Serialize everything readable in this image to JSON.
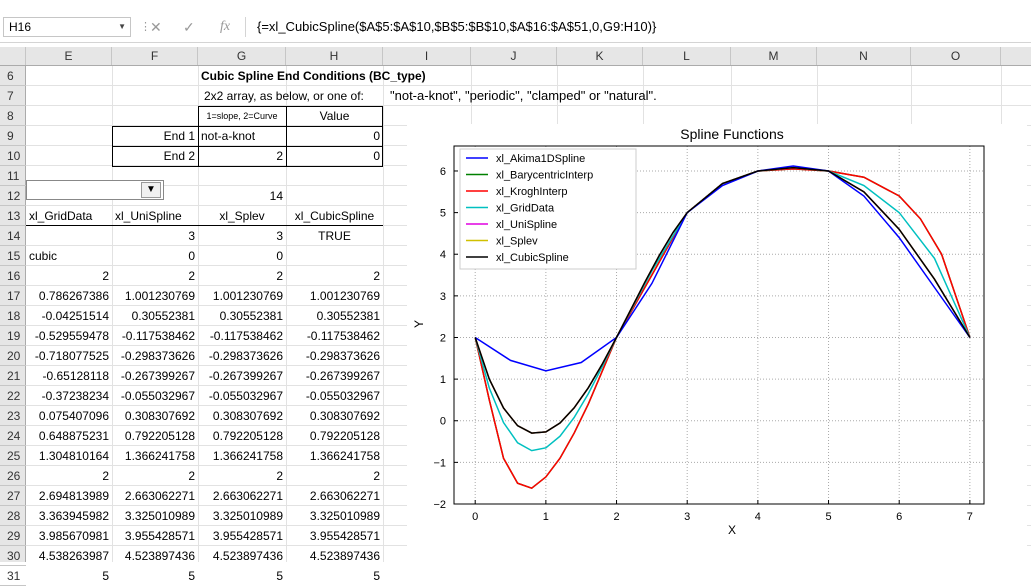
{
  "name_box": {
    "value": "H16"
  },
  "formula_bar": {
    "value": "{=xl_CubicSpline($A$5:$A$10,$B$5:$B$10,$A$16:$A$51,0,G9:H10)}",
    "fx": "fx"
  },
  "columns": [
    "E",
    "F",
    "G",
    "H",
    "I",
    "J",
    "K",
    "L",
    "M",
    "N",
    "O"
  ],
  "rows": [
    "6",
    "7",
    "8",
    "9",
    "10",
    "11",
    "12",
    "13",
    "14",
    "15",
    "16",
    "17",
    "18",
    "19",
    "20",
    "21",
    "22",
    "23",
    "24",
    "25",
    "26",
    "27",
    "28",
    "29",
    "30",
    "31"
  ],
  "sheet": {
    "title": "Cubic Spline End Conditions (BC_type)",
    "subtitle": "2x2 array, as below, or one of:",
    "options": "\"not-a-knot\", \"periodic\", \"clamped\" or \"natural\".",
    "hdr_g8": "1=slope, 2=Curve",
    "hdr_h8": "Value",
    "end1_label": "End 1",
    "end1_type": "not-a-knot",
    "end1_value": "0",
    "end2_label": "End 2",
    "end2_type": "2",
    "end2_value": "0",
    "g12": "14",
    "headers": [
      "xl_GridData",
      "xl_UniSpline",
      "xl_Splev",
      "xl_CubicSpline"
    ],
    "r14": [
      "",
      "3",
      "3",
      "TRUE"
    ],
    "r15": [
      "cubic",
      "0",
      "0",
      ""
    ],
    "data": [
      [
        "2",
        "2",
        "2",
        "2"
      ],
      [
        "0.786267386",
        "1.001230769",
        "1.001230769",
        "1.001230769"
      ],
      [
        "-0.04251514",
        "0.30552381",
        "0.30552381",
        "0.30552381"
      ],
      [
        "-0.529559478",
        "-0.117538462",
        "-0.117538462",
        "-0.117538462"
      ],
      [
        "-0.718077525",
        "-0.298373626",
        "-0.298373626",
        "-0.298373626"
      ],
      [
        "-0.65128118",
        "-0.267399267",
        "-0.267399267",
        "-0.267399267"
      ],
      [
        "-0.37238234",
        "-0.055032967",
        "-0.055032967",
        "-0.055032967"
      ],
      [
        "0.075407096",
        "0.308307692",
        "0.308307692",
        "0.308307692"
      ],
      [
        "0.648875231",
        "0.792205128",
        "0.792205128",
        "0.792205128"
      ],
      [
        "1.304810164",
        "1.366241758",
        "1.366241758",
        "1.366241758"
      ],
      [
        "2",
        "2",
        "2",
        "2"
      ],
      [
        "2.694813989",
        "2.663062271",
        "2.663062271",
        "2.663062271"
      ],
      [
        "3.363945982",
        "3.325010989",
        "3.325010989",
        "3.325010989"
      ],
      [
        "3.985670981",
        "3.955428571",
        "3.955428571",
        "3.955428571"
      ],
      [
        "4.538263987",
        "4.523897436",
        "4.523897436",
        "4.523897436"
      ],
      [
        "5",
        "5",
        "5",
        "5"
      ]
    ]
  },
  "chart_data": {
    "type": "line",
    "title": "Spline Functions",
    "xlabel": "X",
    "ylabel": "Y",
    "xlim": [
      -0.3,
      7.2
    ],
    "ylim": [
      -2,
      6.6
    ],
    "xticks": [
      "0",
      "1",
      "2",
      "3",
      "4",
      "5",
      "6",
      "7"
    ],
    "yticks": [
      "6",
      "5",
      "4",
      "3",
      "2",
      "1",
      "0",
      "−1",
      "−2"
    ],
    "grid": true,
    "legend": "top-left",
    "series": [
      {
        "name": "xl_Akima1DSpline",
        "color": "#0000ff",
        "x": [
          0,
          0.5,
          1,
          1.5,
          2,
          2.5,
          3,
          3.5,
          4,
          4.5,
          5,
          5.5,
          6,
          6.5,
          7
        ],
        "y": [
          2,
          1.45,
          1.2,
          1.4,
          2,
          3.3,
          5.0,
          5.65,
          6.0,
          6.12,
          6.0,
          5.4,
          4.4,
          3.2,
          2
        ]
      },
      {
        "name": "xl_BarycentricInterp",
        "color": "#008000",
        "x": [
          0,
          0.2,
          0.4,
          0.6,
          0.8,
          1.0,
          1.2,
          1.4,
          1.6,
          2,
          2.5,
          3,
          3.5,
          4,
          4.5,
          5,
          5.5,
          6,
          6.3,
          6.6,
          7
        ],
        "y": [
          2,
          0.5,
          -0.9,
          -1.5,
          -1.62,
          -1.35,
          -0.9,
          -0.3,
          0.4,
          2,
          3.5,
          5.0,
          5.7,
          6.0,
          6.05,
          6.0,
          5.85,
          5.4,
          4.85,
          4.0,
          2
        ]
      },
      {
        "name": "xl_KroghInterp",
        "color": "#ff0000",
        "x": [
          0,
          0.2,
          0.4,
          0.6,
          0.8,
          1.0,
          1.2,
          1.4,
          1.6,
          2,
          2.5,
          3,
          3.5,
          4,
          4.5,
          5,
          5.5,
          6,
          6.3,
          6.6,
          7
        ],
        "y": [
          2,
          0.5,
          -0.9,
          -1.5,
          -1.62,
          -1.35,
          -0.9,
          -0.3,
          0.4,
          2,
          3.5,
          5.0,
          5.7,
          6.0,
          6.05,
          6.0,
          5.85,
          5.4,
          4.85,
          4.0,
          2
        ]
      },
      {
        "name": "xl_GridData",
        "color": "#00c0c0",
        "x": [
          0,
          0.2,
          0.4,
          0.6,
          0.8,
          1.0,
          1.2,
          1.4,
          1.6,
          1.8,
          2,
          2.5,
          3,
          3.5,
          4,
          4.5,
          5,
          5.5,
          6,
          6.5,
          7
        ],
        "y": [
          2,
          0.786,
          -0.043,
          -0.53,
          -0.718,
          -0.651,
          -0.372,
          0.075,
          0.649,
          1.305,
          2,
          3.6,
          5.0,
          5.7,
          6.0,
          6.08,
          6.0,
          5.65,
          5.0,
          3.9,
          2
        ]
      },
      {
        "name": "xl_UniSpline",
        "color": "#e000e0",
        "x": [
          0,
          0.2,
          0.4,
          0.6,
          0.8,
          1.0,
          1.2,
          1.4,
          1.6,
          1.8,
          2,
          2.2,
          2.4,
          2.6,
          2.8,
          3,
          3.5,
          4,
          4.5,
          5,
          5.5,
          6,
          6.5,
          7
        ],
        "y": [
          2,
          1.001,
          0.306,
          -0.118,
          -0.298,
          -0.267,
          -0.055,
          0.308,
          0.792,
          1.366,
          2,
          2.663,
          3.325,
          3.955,
          4.524,
          5,
          5.7,
          6.0,
          6.08,
          6.0,
          5.5,
          4.6,
          3.4,
          2
        ]
      },
      {
        "name": "xl_Splev",
        "color": "#d0c000",
        "x": [
          0,
          0.2,
          0.4,
          0.6,
          0.8,
          1.0,
          1.2,
          1.4,
          1.6,
          1.8,
          2,
          2.2,
          2.4,
          2.6,
          2.8,
          3,
          3.5,
          4,
          4.5,
          5,
          5.5,
          6,
          6.5,
          7
        ],
        "y": [
          2,
          1.001,
          0.306,
          -0.118,
          -0.298,
          -0.267,
          -0.055,
          0.308,
          0.792,
          1.366,
          2,
          2.663,
          3.325,
          3.955,
          4.524,
          5,
          5.7,
          6.0,
          6.08,
          6.0,
          5.5,
          4.6,
          3.4,
          2
        ]
      },
      {
        "name": "xl_CubicSpline",
        "color": "#000000",
        "x": [
          0,
          0.2,
          0.4,
          0.6,
          0.8,
          1.0,
          1.2,
          1.4,
          1.6,
          1.8,
          2,
          2.2,
          2.4,
          2.6,
          2.8,
          3,
          3.5,
          4,
          4.5,
          5,
          5.5,
          6,
          6.5,
          7
        ],
        "y": [
          2,
          1.001,
          0.306,
          -0.118,
          -0.298,
          -0.267,
          -0.055,
          0.308,
          0.792,
          1.366,
          2,
          2.663,
          3.325,
          3.955,
          4.524,
          5,
          5.7,
          6.0,
          6.08,
          6.0,
          5.5,
          4.6,
          3.4,
          2
        ]
      }
    ]
  }
}
